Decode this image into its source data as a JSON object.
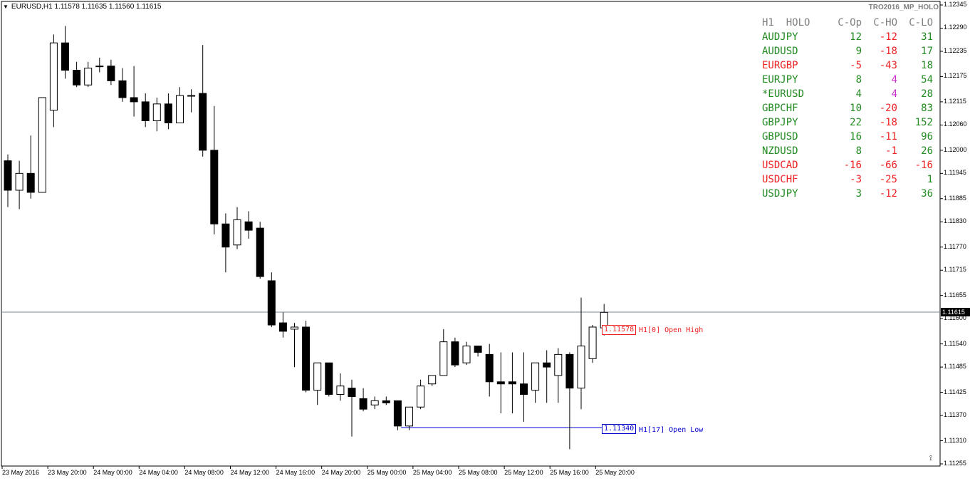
{
  "header": {
    "symbol_info": "EURUSD,H1  1.11578 1.11635 1.11560 1.11615",
    "indicator_name": "TRO2016_MP_HOLO"
  },
  "holo_table": {
    "headers": [
      "H1  HOLO",
      "C-Op",
      "C-HO",
      "C-LO"
    ],
    "rows": [
      {
        "symbol": "AUDJPY",
        "sym_color": "#228b22",
        "c_op": "12",
        "c_op_color": "#228b22",
        "c_ho": "-12",
        "c_ho_color": "#ee2222",
        "c_lo": "31",
        "c_lo_color": "#228b22"
      },
      {
        "symbol": "AUDUSD",
        "sym_color": "#228b22",
        "c_op": "9",
        "c_op_color": "#228b22",
        "c_ho": "-18",
        "c_ho_color": "#ee2222",
        "c_lo": "17",
        "c_lo_color": "#228b22"
      },
      {
        "symbol": "EURGBP",
        "sym_color": "#ee2222",
        "c_op": "-5",
        "c_op_color": "#ee2222",
        "c_ho": "-43",
        "c_ho_color": "#ee2222",
        "c_lo": "18",
        "c_lo_color": "#228b22"
      },
      {
        "symbol": "EURJPY",
        "sym_color": "#228b22",
        "c_op": "8",
        "c_op_color": "#228b22",
        "c_ho": "4",
        "c_ho_color": "#cc33cc",
        "c_lo": "54",
        "c_lo_color": "#228b22"
      },
      {
        "symbol": "*EURUSD",
        "sym_color": "#228b22",
        "c_op": "4",
        "c_op_color": "#228b22",
        "c_ho": "4",
        "c_ho_color": "#cc33cc",
        "c_lo": "28",
        "c_lo_color": "#228b22"
      },
      {
        "symbol": "GBPCHF",
        "sym_color": "#228b22",
        "c_op": "10",
        "c_op_color": "#228b22",
        "c_ho": "-20",
        "c_ho_color": "#ee2222",
        "c_lo": "83",
        "c_lo_color": "#228b22"
      },
      {
        "symbol": "GBPJPY",
        "sym_color": "#228b22",
        "c_op": "22",
        "c_op_color": "#228b22",
        "c_ho": "-18",
        "c_ho_color": "#ee2222",
        "c_lo": "152",
        "c_lo_color": "#228b22"
      },
      {
        "symbol": "GBPUSD",
        "sym_color": "#228b22",
        "c_op": "16",
        "c_op_color": "#228b22",
        "c_ho": "-11",
        "c_ho_color": "#ee2222",
        "c_lo": "96",
        "c_lo_color": "#228b22"
      },
      {
        "symbol": "NZDUSD",
        "sym_color": "#228b22",
        "c_op": "8",
        "c_op_color": "#228b22",
        "c_ho": "-1",
        "c_ho_color": "#ee2222",
        "c_lo": "26",
        "c_lo_color": "#228b22"
      },
      {
        "symbol": "USDCAD",
        "sym_color": "#ee2222",
        "c_op": "-16",
        "c_op_color": "#ee2222",
        "c_ho": "-66",
        "c_ho_color": "#ee2222",
        "c_lo": "-16",
        "c_lo_color": "#ee2222"
      },
      {
        "symbol": "USDCHF",
        "sym_color": "#ee2222",
        "c_op": "-3",
        "c_op_color": "#ee2222",
        "c_ho": "-25",
        "c_ho_color": "#ee2222",
        "c_lo": "1",
        "c_lo_color": "#228b22"
      },
      {
        "symbol": "USDJPY",
        "sym_color": "#228b22",
        "c_op": "3",
        "c_op_color": "#228b22",
        "c_ho": "-12",
        "c_ho_color": "#ee2222",
        "c_lo": "36",
        "c_lo_color": "#228b22"
      }
    ]
  },
  "markers": {
    "open_high_value": "1.11578",
    "open_high_label": "H1[0] Open High",
    "open_high_color": "#ee2222",
    "open_low_value": "1.11340",
    "open_low_label": "H1[17] Open Low",
    "open_low_color": "#0000cc"
  },
  "current_price": "1.11615",
  "chart_data": {
    "type": "candlestick",
    "title": "",
    "ylim": [
      1.11255,
      1.12345
    ],
    "y_ticks": [
      "1.12345",
      "1.12290",
      "1.12235",
      "1.12175",
      "1.12115",
      "1.12060",
      "1.12000",
      "1.11945",
      "1.11885",
      "1.11830",
      "1.11770",
      "1.11715",
      "1.11655",
      "1.11600",
      "1.11540",
      "1.11485",
      "1.11425",
      "1.11370",
      "1.11310",
      "1.11255"
    ],
    "x_ticks": [
      "23 May 2016",
      "23 May 20:00",
      "24 May 00:00",
      "24 May 04:00",
      "24 May 08:00",
      "24 May 12:00",
      "24 May 16:00",
      "24 May 20:00",
      "25 May 00:00",
      "25 May 04:00",
      "25 May 08:00",
      "25 May 12:00",
      "25 May 16:00",
      "25 May 20:00"
    ],
    "candles": [
      {
        "o": 1.11975,
        "h": 1.1199,
        "l": 1.11865,
        "c": 1.11905
      },
      {
        "o": 1.11905,
        "h": 1.11975,
        "l": 1.1186,
        "c": 1.11945
      },
      {
        "o": 1.11945,
        "h": 1.12035,
        "l": 1.11885,
        "c": 1.119
      },
      {
        "o": 1.119,
        "h": 1.12115,
        "l": 1.119,
        "c": 1.12125
      },
      {
        "o": 1.12095,
        "h": 1.12275,
        "l": 1.12055,
        "c": 1.12255
      },
      {
        "o": 1.12255,
        "h": 1.12295,
        "l": 1.1217,
        "c": 1.1219
      },
      {
        "o": 1.1219,
        "h": 1.1221,
        "l": 1.1215,
        "c": 1.12155
      },
      {
        "o": 1.12155,
        "h": 1.1221,
        "l": 1.1215,
        "c": 1.12195
      },
      {
        "o": 1.122,
        "h": 1.1222,
        "l": 1.12185,
        "c": 1.122
      },
      {
        "o": 1.122,
        "h": 1.12215,
        "l": 1.12155,
        "c": 1.12165
      },
      {
        "o": 1.12165,
        "h": 1.12195,
        "l": 1.12115,
        "c": 1.12125
      },
      {
        "o": 1.12125,
        "h": 1.122,
        "l": 1.1208,
        "c": 1.12115
      },
      {
        "o": 1.12115,
        "h": 1.12135,
        "l": 1.12055,
        "c": 1.1207
      },
      {
        "o": 1.1207,
        "h": 1.12125,
        "l": 1.12045,
        "c": 1.1211
      },
      {
        "o": 1.1211,
        "h": 1.12135,
        "l": 1.1205,
        "c": 1.12065
      },
      {
        "o": 1.12065,
        "h": 1.1215,
        "l": 1.12065,
        "c": 1.1213
      },
      {
        "o": 1.1213,
        "h": 1.12145,
        "l": 1.1209,
        "c": 1.1213
      },
      {
        "o": 1.12135,
        "h": 1.1225,
        "l": 1.11985,
        "c": 1.12
      },
      {
        "o": 1.12,
        "h": 1.12105,
        "l": 1.118,
        "c": 1.11825
      },
      {
        "o": 1.11825,
        "h": 1.1185,
        "l": 1.1171,
        "c": 1.1177
      },
      {
        "o": 1.11775,
        "h": 1.11865,
        "l": 1.11765,
        "c": 1.11835
      },
      {
        "o": 1.1183,
        "h": 1.11855,
        "l": 1.1179,
        "c": 1.1181
      },
      {
        "o": 1.11815,
        "h": 1.1183,
        "l": 1.11695,
        "c": 1.117
      },
      {
        "o": 1.1169,
        "h": 1.1171,
        "l": 1.1158,
        "c": 1.11585
      },
      {
        "o": 1.1159,
        "h": 1.11615,
        "l": 1.11555,
        "c": 1.1157
      },
      {
        "o": 1.11575,
        "h": 1.1159,
        "l": 1.11485,
        "c": 1.1158
      },
      {
        "o": 1.1158,
        "h": 1.11595,
        "l": 1.11425,
        "c": 1.1143
      },
      {
        "o": 1.1143,
        "h": 1.1149,
        "l": 1.11395,
        "c": 1.11495
      },
      {
        "o": 1.11495,
        "h": 1.11495,
        "l": 1.11415,
        "c": 1.1142
      },
      {
        "o": 1.1142,
        "h": 1.1147,
        "l": 1.11405,
        "c": 1.1144
      },
      {
        "o": 1.11435,
        "h": 1.11455,
        "l": 1.1132,
        "c": 1.11415
      },
      {
        "o": 1.1141,
        "h": 1.11435,
        "l": 1.1138,
        "c": 1.11385
      },
      {
        "o": 1.11395,
        "h": 1.11415,
        "l": 1.11385,
        "c": 1.11405
      },
      {
        "o": 1.11405,
        "h": 1.11415,
        "l": 1.11395,
        "c": 1.114
      },
      {
        "o": 1.11405,
        "h": 1.114,
        "l": 1.11335,
        "c": 1.11345
      },
      {
        "o": 1.11345,
        "h": 1.1139,
        "l": 1.11335,
        "c": 1.1139
      },
      {
        "o": 1.1139,
        "h": 1.11455,
        "l": 1.11385,
        "c": 1.1144
      },
      {
        "o": 1.11445,
        "h": 1.11465,
        "l": 1.1144,
        "c": 1.11465
      },
      {
        "o": 1.11465,
        "h": 1.11575,
        "l": 1.11465,
        "c": 1.11545
      },
      {
        "o": 1.11545,
        "h": 1.11555,
        "l": 1.11485,
        "c": 1.1149
      },
      {
        "o": 1.11495,
        "h": 1.11545,
        "l": 1.1149,
        "c": 1.11535
      },
      {
        "o": 1.11535,
        "h": 1.11535,
        "l": 1.1151,
        "c": 1.1152
      },
      {
        "o": 1.11515,
        "h": 1.1154,
        "l": 1.11415,
        "c": 1.1145
      },
      {
        "o": 1.1145,
        "h": 1.1152,
        "l": 1.11375,
        "c": 1.11445
      },
      {
        "o": 1.1145,
        "h": 1.1152,
        "l": 1.11375,
        "c": 1.11445
      },
      {
        "o": 1.11445,
        "h": 1.1152,
        "l": 1.11355,
        "c": 1.1142
      },
      {
        "o": 1.1143,
        "h": 1.11495,
        "l": 1.114,
        "c": 1.11495
      },
      {
        "o": 1.11495,
        "h": 1.11525,
        "l": 1.114,
        "c": 1.11485
      },
      {
        "o": 1.11465,
        "h": 1.1153,
        "l": 1.114,
        "c": 1.11515
      },
      {
        "o": 1.11515,
        "h": 1.1152,
        "l": 1.1129,
        "c": 1.11435
      },
      {
        "o": 1.11435,
        "h": 1.1165,
        "l": 1.11385,
        "c": 1.11535
      },
      {
        "o": 1.11505,
        "h": 1.11585,
        "l": 1.11495,
        "c": 1.1158
      },
      {
        "o": 1.11578,
        "h": 1.11635,
        "l": 1.1156,
        "c": 1.11615
      }
    ]
  }
}
